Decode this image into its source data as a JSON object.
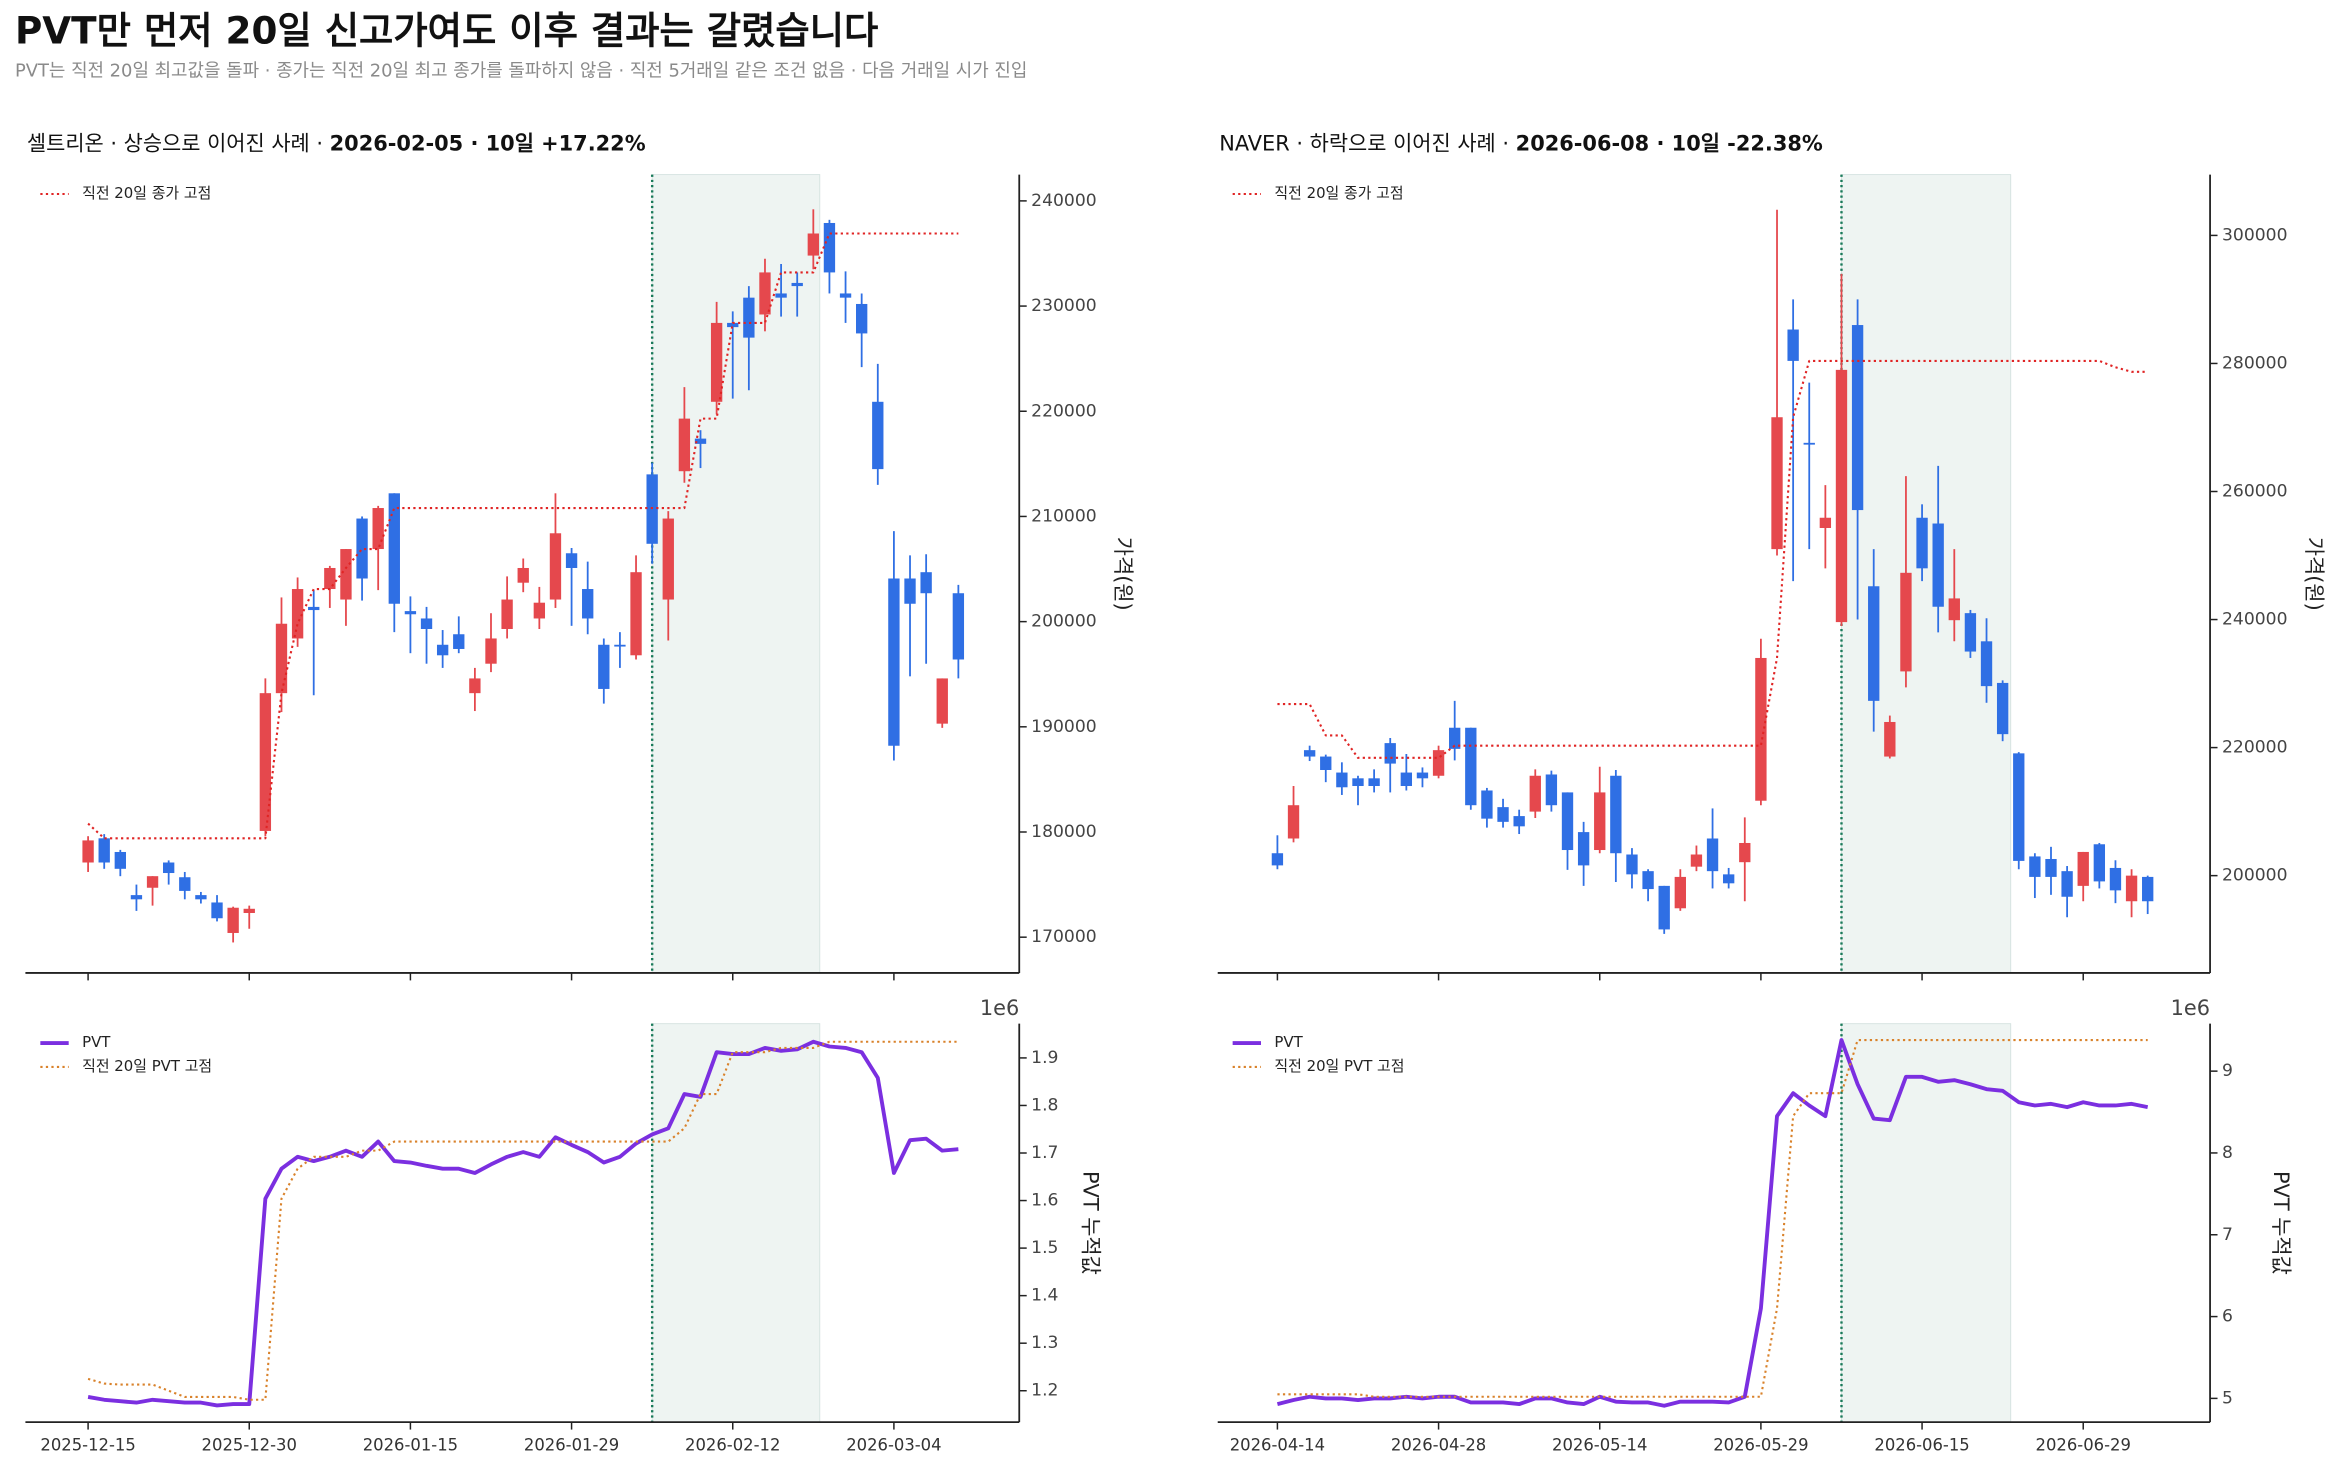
{
  "title": "PVT만 먼저 20일 신고가여도 이후 결과는 갈렸습니다",
  "subtitle": "PVT는 직전 20일 최고값을 돌파 · 종가는 직전 20일 최고 종가를 돌파하지 않음 · 직전 5거래일 같은 조건 없음 · 다음 거래일 시가 진입",
  "chart_data": [
    {
      "type": "candlestick",
      "title": [
        "셀트리온 · 상승으로 이어진 사례 · ",
        "2026-02-05 · 10일 +17.22%"
      ],
      "ylabel": "가격(원)",
      "up_color": "#e5484d",
      "down_color": "#2f6fe4",
      "open": [
        177100,
        179400,
        178100,
        174000,
        174700,
        177100,
        175700,
        174000,
        173300,
        170400,
        172300,
        180100,
        193200,
        198400,
        201400,
        203100,
        202100,
        209800,
        206900,
        212200,
        201000,
        200300,
        197800,
        198800,
        193200,
        196000,
        199300,
        203700,
        200300,
        202100,
        206500,
        203100,
        197800,
        197800,
        196800,
        214000,
        202100,
        214300,
        217400,
        220900,
        228400,
        230800,
        229200,
        231200,
        232200,
        234800,
        237900,
        231200,
        230200,
        220900,
        204100,
        204100,
        204700,
        190300,
        202700
      ],
      "high": [
        179600,
        179800,
        178300,
        175000,
        175800,
        177300,
        176200,
        174300,
        174000,
        172900,
        173000,
        194600,
        202300,
        204200,
        203000,
        205300,
        206900,
        210000,
        211000,
        212200,
        202400,
        201400,
        199200,
        200500,
        195600,
        200800,
        204300,
        206000,
        203300,
        212200,
        207000,
        205700,
        198400,
        199000,
        206300,
        215100,
        210500,
        222300,
        218200,
        230400,
        229500,
        231900,
        234500,
        234000,
        233200,
        239200,
        238200,
        233300,
        231200,
        224500,
        208600,
        206300,
        206400,
        194600,
        203500
      ],
      "low": [
        176200,
        176500,
        175800,
        172500,
        173000,
        175000,
        173600,
        173200,
        171500,
        169500,
        170800,
        179600,
        191400,
        197600,
        193000,
        201300,
        199600,
        202000,
        203000,
        199000,
        197000,
        196000,
        195600,
        197000,
        191500,
        195200,
        198400,
        202800,
        199300,
        201300,
        199600,
        198800,
        192200,
        195600,
        196400,
        205500,
        198200,
        213200,
        214600,
        219700,
        221200,
        222000,
        227600,
        229000,
        229000,
        233500,
        231200,
        228400,
        224200,
        213000,
        186800,
        194800,
        196000,
        189900,
        194600
      ],
      "close": [
        179200,
        177100,
        176500,
        173600,
        175800,
        176100,
        174400,
        173600,
        171800,
        172800,
        172700,
        193200,
        199800,
        203100,
        201100,
        205100,
        206900,
        204100,
        210800,
        201700,
        200700,
        199300,
        196800,
        197400,
        194600,
        198400,
        202100,
        205100,
        201800,
        208400,
        205100,
        200300,
        193600,
        197700,
        204700,
        207400,
        209800,
        219300,
        216900,
        228400,
        228000,
        227000,
        233200,
        230800,
        231900,
        236900,
        233200,
        230800,
        227400,
        214500,
        188200,
        201700,
        202700,
        194600,
        196400
      ],
      "series": [
        {
          "name": "직전 20일 종가 고점",
          "color": "#e02424",
          "linestyle": "dotted",
          "values": [
            180800,
            179400,
            179400,
            179400,
            179400,
            179400,
            179400,
            179400,
            179400,
            179400,
            179400,
            179400,
            193200,
            199800,
            203100,
            203100,
            205100,
            206900,
            206900,
            210800,
            210800,
            210800,
            210800,
            210800,
            210800,
            210800,
            210800,
            210800,
            210800,
            210800,
            210800,
            210800,
            210800,
            210800,
            210800,
            210800,
            210800,
            210800,
            219300,
            219300,
            228400,
            228400,
            228400,
            233200,
            233200,
            233200,
            236900,
            236900,
            236900,
            236900,
            236900,
            236900,
            236900,
            236900,
            236900
          ]
        }
      ],
      "ylim": [
        166600,
        242500
      ],
      "yticks": [
        170000,
        180000,
        190000,
        200000,
        210000,
        220000,
        230000,
        240000
      ],
      "highlight": {
        "start": 35,
        "end": 45.4
      },
      "signal_color": "#1a7a5a",
      "highlight_color": "#e3ecea",
      "legend": "upper left"
    },
    {
      "type": "line",
      "ylabel": "PVT 누적값",
      "y_offset_label": "1e6",
      "categories": [
        "2025-12-15",
        null,
        null,
        null,
        null,
        null,
        null,
        null,
        null,
        null,
        "2025-12-30",
        null,
        null,
        null,
        null,
        null,
        null,
        null,
        null,
        null,
        "2026-01-15",
        null,
        null,
        null,
        null,
        null,
        null,
        null,
        null,
        null,
        "2026-01-29",
        null,
        null,
        null,
        null,
        null,
        null,
        null,
        null,
        null,
        "2026-02-12",
        null,
        null,
        null,
        null,
        null,
        null,
        null,
        null,
        null,
        "2026-03-04",
        null,
        null,
        null,
        null
      ],
      "series": [
        {
          "name": "PVT",
          "color": "#7b2fe0",
          "linestyle": "solid",
          "values": [
            1.187,
            1.181,
            1.178,
            1.175,
            1.181,
            1.178,
            1.175,
            1.175,
            1.169,
            1.172,
            1.172,
            1.604,
            1.667,
            1.692,
            1.683,
            1.692,
            1.705,
            1.692,
            1.724,
            1.683,
            1.68,
            1.673,
            1.667,
            1.667,
            1.658,
            1.676,
            1.692,
            1.702,
            1.692,
            1.733,
            1.717,
            1.702,
            1.68,
            1.692,
            1.72,
            1.739,
            1.752,
            1.824,
            1.818,
            1.912,
            1.908,
            1.908,
            1.921,
            1.915,
            1.918,
            1.934,
            1.924,
            1.921,
            1.912,
            1.858,
            1.658,
            1.727,
            1.73,
            1.705,
            1.708
          ]
        },
        {
          "name": "직전 20일 PVT 고점",
          "color": "#d9822b",
          "linestyle": "dotted",
          "values": [
            1.225,
            1.215,
            1.213,
            1.213,
            1.213,
            1.2,
            1.187,
            1.187,
            1.187,
            1.187,
            1.181,
            1.181,
            1.604,
            1.667,
            1.692,
            1.692,
            1.692,
            1.705,
            1.705,
            1.724,
            1.724,
            1.724,
            1.724,
            1.724,
            1.724,
            1.724,
            1.724,
            1.724,
            1.724,
            1.724,
            1.724,
            1.724,
            1.724,
            1.724,
            1.724,
            1.724,
            1.724,
            1.752,
            1.824,
            1.824,
            1.912,
            1.912,
            1.912,
            1.921,
            1.921,
            1.921,
            1.934,
            1.934,
            1.934,
            1.934,
            1.934,
            1.934,
            1.934,
            1.934,
            1.934
          ]
        }
      ],
      "ylim": [
        1.134,
        1.972
      ],
      "yticks": [
        1.2,
        1.3,
        1.4,
        1.5,
        1.6,
        1.7,
        1.8,
        1.9
      ],
      "highlight": {
        "start": 35,
        "end": 45.4
      },
      "signal_color": "#1a7a5a",
      "highlight_color": "#e3ecea",
      "legend": "upper left"
    },
    {
      "type": "candlestick",
      "title": [
        "NAVER · 하락으로 이어진 사례 · ",
        "2026-06-08 · 10일 -22.38%"
      ],
      "ylabel": "가격(원)",
      "up_color": "#e5484d",
      "down_color": "#2f6fe4",
      "open": [
        203500,
        205800,
        219600,
        218600,
        216100,
        215200,
        215200,
        220700,
        216100,
        216100,
        215600,
        223100,
        223100,
        213300,
        210700,
        209300,
        210000,
        215800,
        213000,
        206800,
        204000,
        215600,
        203300,
        200700,
        198400,
        194900,
        201400,
        205800,
        200200,
        202100,
        211700,
        251000,
        285300,
        267600,
        254300,
        239600,
        286000,
        245200,
        218600,
        231900,
        255900,
        255000,
        239900,
        241000,
        236600,
        230100,
        219100,
        203000,
        202600,
        200700,
        198400,
        204900,
        201200,
        196000,
        199800
      ],
      "high": [
        206300,
        214000,
        220300,
        218900,
        217700,
        215600,
        216600,
        221500,
        219000,
        216900,
        220300,
        227300,
        223100,
        213700,
        212000,
        210300,
        216600,
        216400,
        213000,
        208400,
        217000,
        216500,
        204300,
        201000,
        198400,
        201000,
        204700,
        210500,
        201200,
        209100,
        237000,
        304000,
        290000,
        277000,
        261000,
        294000,
        290000,
        251000,
        225000,
        262400,
        258000,
        264000,
        251000,
        241500,
        240200,
        230500,
        219300,
        203500,
        204500,
        201500,
        203700,
        205100,
        202400,
        201000,
        200000
      ],
      "low": [
        201000,
        205200,
        217900,
        214600,
        212600,
        211000,
        213000,
        213000,
        213300,
        213800,
        215200,
        218000,
        210300,
        207500,
        207500,
        206500,
        209000,
        210000,
        200900,
        198400,
        203500,
        199000,
        198000,
        196000,
        190900,
        194500,
        200700,
        198000,
        198000,
        196000,
        211000,
        250000,
        246000,
        251000,
        248000,
        239000,
        240000,
        222500,
        218300,
        229400,
        246000,
        238000,
        236600,
        234000,
        227000,
        221000,
        201000,
        196500,
        197000,
        193500,
        196000,
        198000,
        195700,
        193500,
        194000
      ],
      "close": [
        201600,
        211000,
        218600,
        216500,
        213800,
        214000,
        214000,
        217500,
        214000,
        215200,
        219600,
        219800,
        211000,
        208900,
        208400,
        207700,
        215600,
        211000,
        204000,
        201600,
        213000,
        203500,
        200200,
        197900,
        191600,
        199800,
        203300,
        200700,
        198800,
        205100,
        234000,
        271600,
        280400,
        267400,
        255900,
        279000,
        257100,
        227300,
        224000,
        247300,
        248000,
        242000,
        243300,
        235000,
        229600,
        222100,
        202300,
        199800,
        199800,
        196700,
        203700,
        199100,
        197700,
        200000,
        196000
      ],
      "series": [
        {
          "name": "직전 20일 종가 고점",
          "color": "#e02424",
          "linestyle": "dotted",
          "values": [
            226800,
            226800,
            226800,
            221900,
            221900,
            218400,
            218400,
            218400,
            218400,
            218400,
            218400,
            220300,
            220300,
            220300,
            220300,
            220300,
            220300,
            220300,
            220300,
            220300,
            220300,
            220300,
            220300,
            220300,
            220300,
            220300,
            220300,
            220300,
            220300,
            220300,
            220300,
            234000,
            271600,
            280400,
            280400,
            280400,
            280400,
            280400,
            280400,
            280400,
            280400,
            280400,
            280400,
            280400,
            280400,
            280400,
            280400,
            280400,
            280400,
            280400,
            280400,
            280400,
            279400,
            278700,
            278700
          ]
        }
      ],
      "ylim": [
        184800,
        309500
      ],
      "yticks": [
        200000,
        220000,
        240000,
        260000,
        280000,
        300000
      ],
      "highlight": {
        "start": 35,
        "end": 45.5
      },
      "signal_color": "#1a7a5a",
      "highlight_color": "#e3ecea",
      "legend": "upper left"
    },
    {
      "type": "line",
      "ylabel": "PVT 누적값",
      "y_offset_label": "1e6",
      "categories": [
        "2026-04-14",
        null,
        null,
        null,
        null,
        null,
        null,
        null,
        null,
        null,
        "2026-04-28",
        null,
        null,
        null,
        null,
        null,
        null,
        null,
        null,
        null,
        "2026-05-14",
        null,
        null,
        null,
        null,
        null,
        null,
        null,
        null,
        null,
        "2026-05-29",
        null,
        null,
        null,
        null,
        null,
        null,
        null,
        null,
        null,
        "2026-06-15",
        null,
        null,
        null,
        null,
        null,
        null,
        null,
        null,
        null,
        "2026-06-29",
        null,
        null,
        null,
        null
      ],
      "series": [
        {
          "name": "PVT",
          "color": "#7b2fe0",
          "linestyle": "solid",
          "values": [
            4.93,
            4.98,
            5.02,
            5,
            5,
            4.98,
            5,
            5,
            5.02,
            5,
            5.02,
            5.02,
            4.95,
            4.95,
            4.95,
            4.93,
            5,
            5,
            4.95,
            4.93,
            5.02,
            4.96,
            4.95,
            4.95,
            4.91,
            4.96,
            4.96,
            4.96,
            4.95,
            5.02,
            6.1,
            8.45,
            8.73,
            8.58,
            8.45,
            9.38,
            8.84,
            8.42,
            8.4,
            8.93,
            8.93,
            8.87,
            8.89,
            8.84,
            8.78,
            8.76,
            8.62,
            8.58,
            8.6,
            8.56,
            8.62,
            8.58,
            8.58,
            8.6,
            8.56
          ]
        },
        {
          "name": "직전 20일 PVT 고점",
          "color": "#d9822b",
          "linestyle": "dotted",
          "values": [
            5.05,
            5.05,
            5.05,
            5.05,
            5.05,
            5.05,
            5.02,
            5.02,
            5.02,
            5.02,
            5.02,
            5.02,
            5.02,
            5.02,
            5.02,
            5.02,
            5.02,
            5.02,
            5.02,
            5.02,
            5.02,
            5.02,
            5.02,
            5.02,
            5.02,
            5.02,
            5.02,
            5.02,
            5.02,
            5.02,
            5.02,
            6.1,
            8.45,
            8.73,
            8.73,
            8.73,
            9.38,
            9.38,
            9.38,
            9.38,
            9.38,
            9.38,
            9.38,
            9.38,
            9.38,
            9.38,
            9.38,
            9.38,
            9.38,
            9.38,
            9.38,
            9.38,
            9.38,
            9.38,
            9.38
          ]
        }
      ],
      "ylim": [
        4.71,
        9.58
      ],
      "yticks": [
        5,
        6,
        7,
        8,
        9
      ],
      "highlight": {
        "start": 35,
        "end": 45.5
      },
      "signal_color": "#1a7a5a",
      "highlight_color": "#e3ecea",
      "legend": "upper left"
    }
  ]
}
